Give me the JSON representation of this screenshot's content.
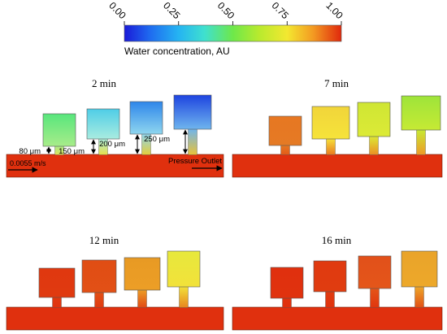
{
  "colorbar": {
    "ticks": [
      "0.00",
      "0.25",
      "0.50",
      "0.75",
      "1.00"
    ],
    "label": "Water concentration, AU"
  },
  "panels": [
    {
      "time_label": "2 min",
      "colors": {
        "channel": "#e0300e",
        "chambers": [
          {
            "top": "#58e67c",
            "bottom": "#a8ec8a",
            "neck": "#dde35a"
          },
          {
            "top": "#4fcde7",
            "bottom": "#a9ece0",
            "neck": "#e6e04a"
          },
          {
            "top": "#2e86ea",
            "bottom": "#8fd6ef",
            "neck": "#e4ce3c"
          },
          {
            "top": "#1e44e0",
            "bottom": "#6fb5ee",
            "neck": "#e8c23a"
          }
        ]
      },
      "annotations": {
        "heights": [
          "80 μm",
          "150 μm",
          "200 μm",
          "250 μm"
        ],
        "inlet": "0.0055 m/s",
        "outlet": "Pressure Outlet"
      }
    },
    {
      "time_label": "7 min",
      "colors": {
        "channel": "#e0300e",
        "chambers": [
          {
            "top": "#e77722",
            "bottom": "#e57a24",
            "neck": "#e35a18"
          },
          {
            "top": "#f1d53a",
            "bottom": "#f6e33a",
            "neck": "#e97a20"
          },
          {
            "top": "#cfe634",
            "bottom": "#dcea36",
            "neck": "#eb9024"
          },
          {
            "top": "#9ee43a",
            "bottom": "#c6ea34",
            "neck": "#ee9a28"
          }
        ]
      }
    },
    {
      "time_label": "12 min",
      "colors": {
        "channel": "#e0300e",
        "chambers": [
          {
            "top": "#e0380f",
            "bottom": "#e03a10",
            "neck": "#e03410"
          },
          {
            "top": "#e04d14",
            "bottom": "#e25016",
            "neck": "#e03a10"
          },
          {
            "top": "#e89a24",
            "bottom": "#ec9e26",
            "neck": "#e24a14"
          },
          {
            "top": "#e7e83c",
            "bottom": "#f2e23a",
            "neck": "#e8861f"
          }
        ]
      }
    },
    {
      "time_label": "16 min",
      "colors": {
        "channel": "#e0300e",
        "chambers": [
          {
            "top": "#e0300e",
            "bottom": "#e0320e",
            "neck": "#e0300e"
          },
          {
            "top": "#e03a10",
            "bottom": "#e03c10",
            "neck": "#e0320e"
          },
          {
            "top": "#e2501a",
            "bottom": "#e4561a",
            "neck": "#e0360f"
          },
          {
            "top": "#e9a42a",
            "bottom": "#eda82a",
            "neck": "#e25016"
          }
        ]
      }
    }
  ]
}
